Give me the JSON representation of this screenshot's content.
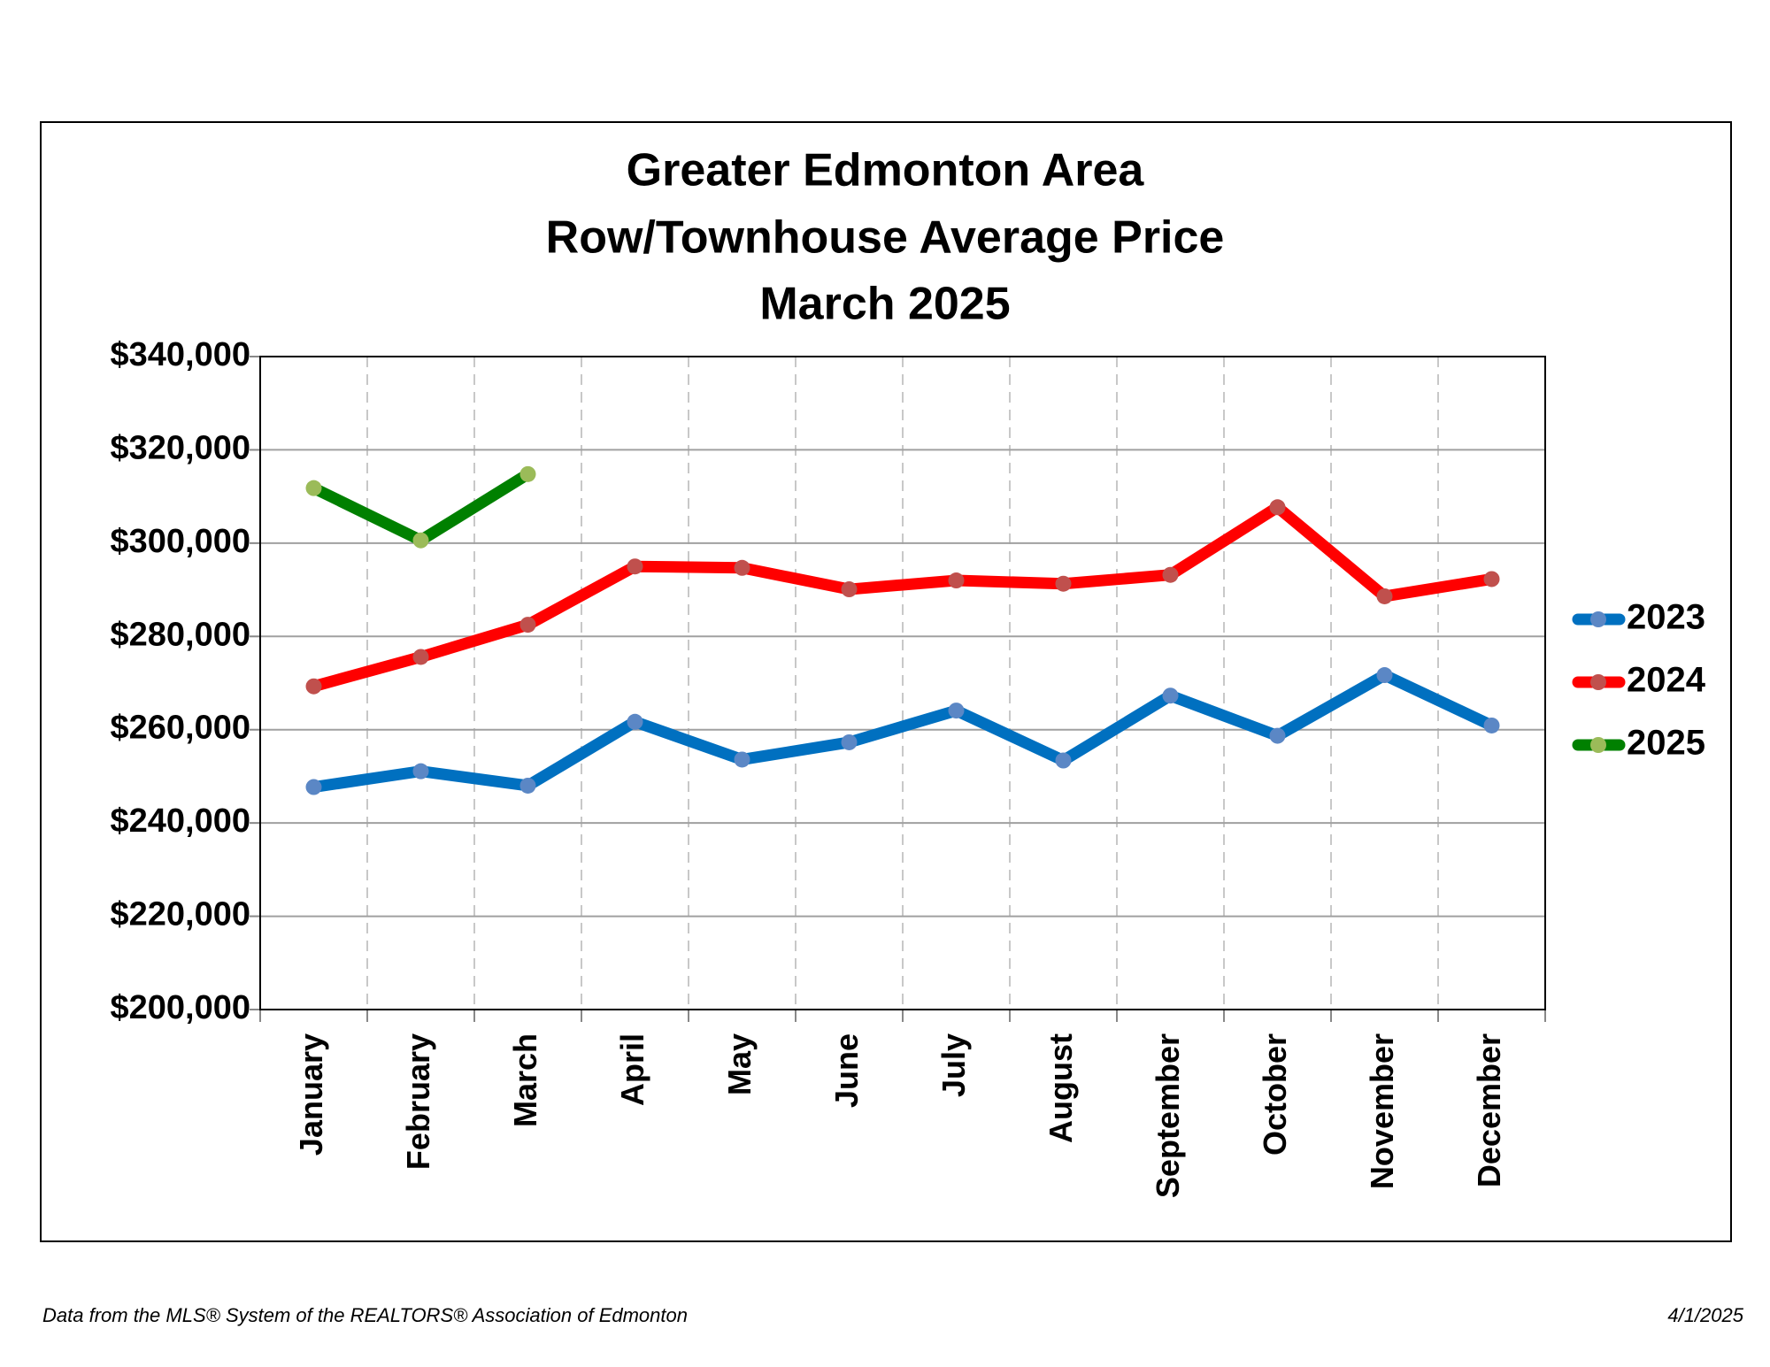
{
  "chart_data": {
    "type": "line",
    "title_lines": [
      "Greater Edmonton Area",
      "Row/Townhouse Average Price",
      "March 2025"
    ],
    "categories": [
      "January",
      "February",
      "March",
      "April",
      "May",
      "June",
      "July",
      "August",
      "September",
      "October",
      "November",
      "December"
    ],
    "series": [
      {
        "name": "2023",
        "color": "#0070c0",
        "marker_color": "#5b87c5",
        "values": [
          247700,
          251100,
          248000,
          261700,
          253600,
          257300,
          264100,
          253400,
          267300,
          258700,
          271700,
          260900
        ]
      },
      {
        "name": "2024",
        "color": "#ff0000",
        "marker_color": "#c0504d",
        "values": [
          269300,
          275600,
          282500,
          295000,
          294700,
          290100,
          292000,
          291300,
          293200,
          307700,
          288600,
          292300
        ]
      },
      {
        "name": "2025",
        "color": "#008000",
        "marker_color": "#9bbb59",
        "values": [
          311800,
          300600,
          314800,
          null,
          null,
          null,
          null,
          null,
          null,
          null,
          null,
          null
        ]
      }
    ],
    "ylim": [
      200000,
      340000
    ],
    "yticks": [
      {
        "value": 200000,
        "label": "$200,000"
      },
      {
        "value": 220000,
        "label": "$220,000"
      },
      {
        "value": 240000,
        "label": "$240,000"
      },
      {
        "value": 260000,
        "label": "$260,000"
      },
      {
        "value": 280000,
        "label": "$280,000"
      },
      {
        "value": 300000,
        "label": "$300,000"
      },
      {
        "value": 320000,
        "label": "$320,000"
      },
      {
        "value": 340000,
        "label": "$340,000"
      }
    ],
    "grid": true,
    "legend": "right",
    "footer_note": "Data from the MLS® System of the REALTORS® Association of Edmonton",
    "footer_date": "4/1/2025"
  }
}
